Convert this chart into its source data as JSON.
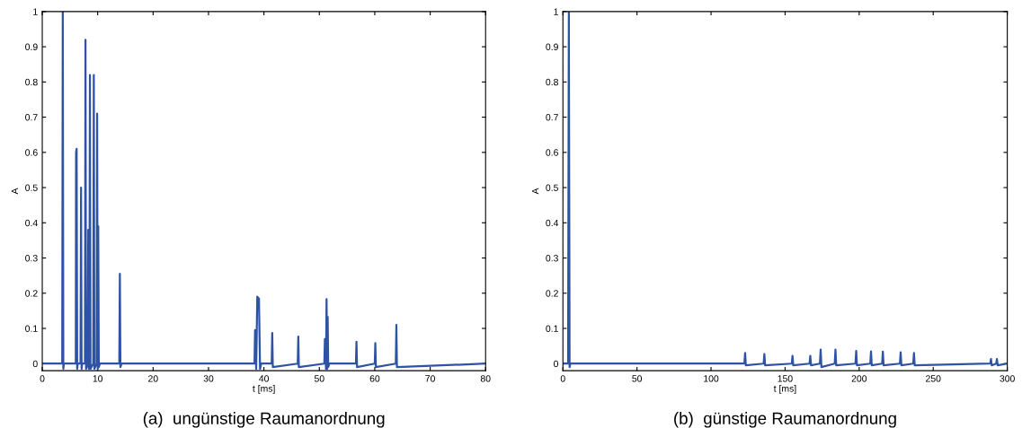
{
  "chart_data": [
    {
      "type": "line",
      "title": "(a)  ungünstige Raumanordnung",
      "xlabel": "t [ms]",
      "ylabel": "A",
      "xlim": [
        0,
        80
      ],
      "ylim": [
        -0.02,
        1
      ],
      "xticks": [
        0,
        10,
        20,
        30,
        40,
        50,
        60,
        70,
        80
      ],
      "yticks": [
        0,
        0.1,
        0.2,
        0.3,
        0.4,
        0.5,
        0.6,
        0.7,
        0.8,
        0.9,
        1
      ],
      "grid": false,
      "marker": "none",
      "line_style": "solid",
      "series": [
        {
          "color": "#2e52a4",
          "x": [
            0,
            3.6,
            3.7,
            3.8,
            3.9,
            6.05,
            6.1,
            6.2,
            6.3,
            6.4,
            6.9,
            7.0,
            7.1,
            7.2,
            7.7,
            7.8,
            7.9,
            8.2,
            8.3,
            8.4,
            8.5,
            8.6,
            8.7,
            9.2,
            9.3,
            9.4,
            9.8,
            9.9,
            10.0,
            10.1,
            10.2,
            10.4,
            13.9,
            14.0,
            14.1,
            14.3,
            38.3,
            38.4,
            38.6,
            38.8,
            39.1,
            39.3,
            39.5,
            41.4,
            41.5,
            41.6,
            46.1,
            46.2,
            46.3,
            50.9,
            51.0,
            51.2,
            51.3,
            51.4,
            51.5,
            51.6,
            51.8,
            56.6,
            56.7,
            56.8,
            60.0,
            60.1,
            60.2,
            63.8,
            63.9,
            64.0,
            80
          ],
          "values": [
            0,
            0,
            1,
            -0.015,
            0,
            0,
            0.6,
            0.61,
            -0.015,
            0,
            0,
            0.5,
            -0.015,
            0,
            0,
            0.92,
            -0.015,
            0,
            0.38,
            -0.015,
            0,
            0.82,
            -0.015,
            0,
            0.82,
            -0.015,
            0,
            0.71,
            -0.015,
            0.39,
            -0.01,
            0,
            0,
            0.255,
            -0.01,
            0,
            0,
            0.095,
            -0.015,
            0.19,
            0.185,
            -0.015,
            0,
            0,
            0.087,
            -0.01,
            0,
            0.077,
            -0.01,
            0,
            0.07,
            -0.015,
            0.183,
            -0.015,
            0.133,
            -0.01,
            0,
            0,
            0.062,
            -0.01,
            0,
            0.058,
            -0.01,
            0,
            0.11,
            -0.01,
            0
          ]
        }
      ]
    },
    {
      "type": "line",
      "title": "(b)  günstige Raumanordnung",
      "xlabel": "t [ms]",
      "ylabel": "A",
      "xlim": [
        0,
        300
      ],
      "ylim": [
        -0.02,
        1
      ],
      "xticks": [
        0,
        50,
        100,
        150,
        200,
        250,
        300
      ],
      "yticks": [
        0,
        0.1,
        0.2,
        0.3,
        0.4,
        0.5,
        0.6,
        0.7,
        0.8,
        0.9,
        1
      ],
      "grid": false,
      "marker": "none",
      "line_style": "solid",
      "series": [
        {
          "color": "#2e52a4",
          "x": [
            0,
            3.5,
            4,
            4.5,
            5,
            122.5,
            123,
            123.5,
            135.5,
            136,
            136.5,
            154.5,
            155,
            155.5,
            166.5,
            167,
            167.5,
            173.5,
            174,
            174.5,
            183.5,
            184,
            184.5,
            197.5,
            198,
            198.5,
            207.5,
            208,
            208.5,
            215.5,
            216,
            216.5,
            227.5,
            228,
            228.5,
            236.5,
            237,
            237.5,
            288.5,
            289,
            289.5,
            292.5,
            293,
            293.5,
            300
          ],
          "values": [
            0,
            0,
            1,
            -0.01,
            0,
            0,
            0.03,
            -0.005,
            0,
            0.027,
            -0.005,
            0,
            0.022,
            -0.005,
            0,
            0.022,
            -0.005,
            0,
            0.04,
            -0.01,
            0,
            0.04,
            -0.005,
            0,
            0.036,
            -0.005,
            0,
            0.035,
            -0.005,
            0,
            0.034,
            -0.005,
            0,
            0.032,
            -0.005,
            0,
            0.03,
            -0.005,
            0,
            0.013,
            -0.005,
            0,
            0.013,
            -0.005,
            0
          ]
        }
      ]
    }
  ]
}
